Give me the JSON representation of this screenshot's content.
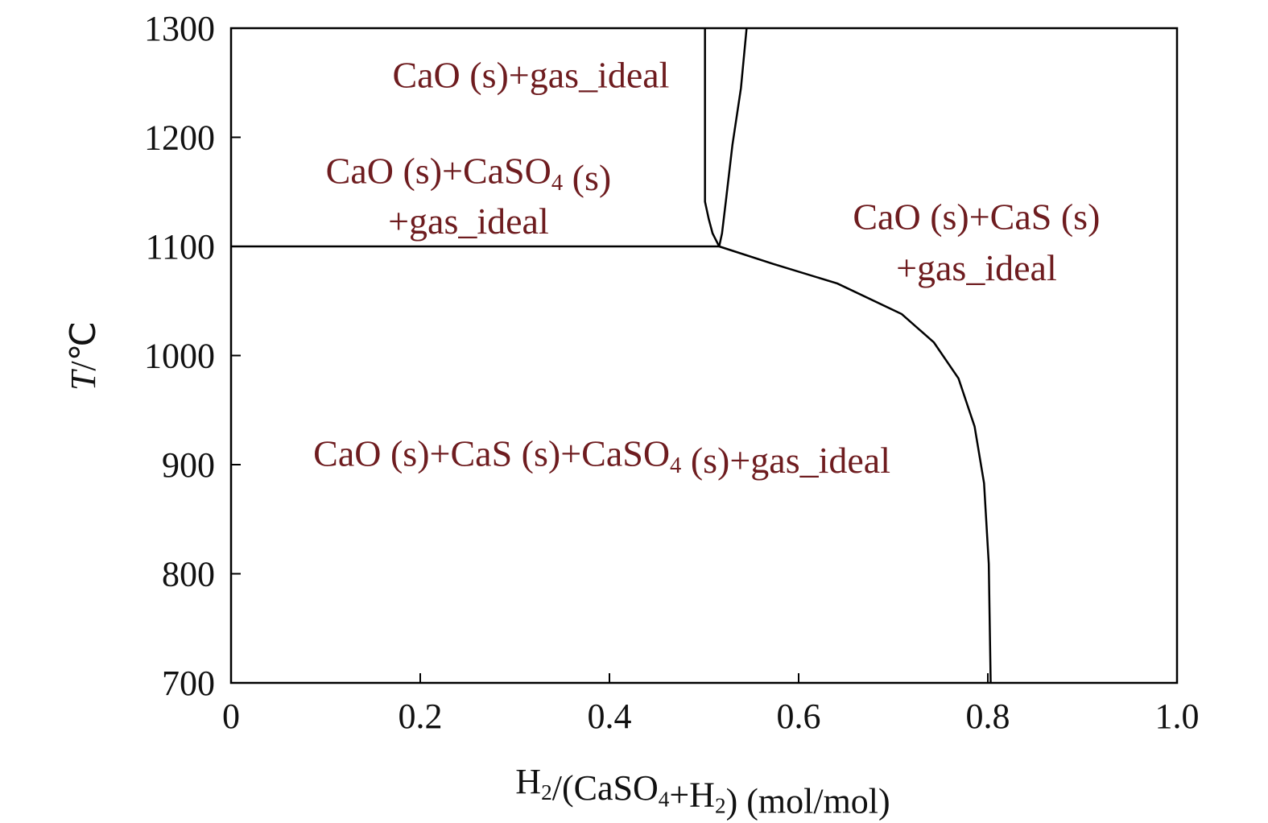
{
  "chart_data": {
    "type": "line",
    "title": "",
    "xlabel": [
      {
        "t": "H"
      },
      {
        "sub": "2"
      },
      {
        "t": "/(CaSO"
      },
      {
        "sub": "4"
      },
      {
        "t": "+H"
      },
      {
        "sub": "2"
      },
      {
        "t": ") (mol/mol)"
      }
    ],
    "ylabel": [
      {
        "i": "T"
      },
      {
        "t": "/℃"
      }
    ],
    "xlim": [
      0,
      1.0
    ],
    "ylim": [
      700,
      1300
    ],
    "xticks": [
      "0",
      "0.2",
      "0.4",
      "0.6",
      "0.8",
      "1.0"
    ],
    "xtick_values": [
      0,
      0.2,
      0.4,
      0.6,
      0.8,
      1.0
    ],
    "yticks": [
      "700",
      "800",
      "900",
      "1000",
      "1100",
      "1200",
      "1300"
    ],
    "ytick_values": [
      700,
      800,
      900,
      1000,
      1100,
      1200,
      1300
    ],
    "grid": false,
    "line_color": "#000000",
    "label_color": "#6e1c1f",
    "boundaries": [
      {
        "name": "horizontal-1100",
        "points": [
          [
            0,
            1100
          ],
          [
            0.516,
            1100
          ]
        ]
      },
      {
        "name": "left-narrow",
        "points": [
          [
            0.501,
            1300
          ],
          [
            0.501,
            1141
          ],
          [
            0.505,
            1125
          ],
          [
            0.509,
            1112
          ],
          [
            0.516,
            1100
          ]
        ]
      },
      {
        "name": "right-narrow",
        "points": [
          [
            0.545,
            1300
          ],
          [
            0.539,
            1245
          ],
          [
            0.53,
            1193
          ],
          [
            0.523,
            1141
          ],
          [
            0.519,
            1112
          ],
          [
            0.516,
            1100
          ]
        ]
      },
      {
        "name": "cas-boundary",
        "points": [
          [
            0.516,
            1100
          ],
          [
            0.573,
            1084
          ],
          [
            0.641,
            1066
          ],
          [
            0.709,
            1038
          ],
          [
            0.743,
            1012
          ],
          [
            0.769,
            979
          ],
          [
            0.786,
            935
          ],
          [
            0.796,
            883
          ],
          [
            0.801,
            809
          ],
          [
            0.803,
            700
          ]
        ]
      }
    ],
    "annotations": [
      {
        "x": 0.317,
        "y": 1257,
        "text": [
          {
            "t": "CaO (s)+gas_ideal"
          }
        ]
      },
      {
        "x": 0.251,
        "y": 1169,
        "text": [
          {
            "t": "CaO (s)+CaSO"
          },
          {
            "sub": "4"
          },
          {
            "t": " (s)"
          }
        ]
      },
      {
        "x": 0.251,
        "y": 1123,
        "text": [
          {
            "t": "+gas_ideal"
          }
        ]
      },
      {
        "x": 0.788,
        "y": 1127,
        "text": [
          {
            "t": "CaO (s)+CaS (s)"
          }
        ]
      },
      {
        "x": 0.788,
        "y": 1080,
        "text": [
          {
            "t": "+gas_ideal"
          }
        ]
      },
      {
        "x": 0.392,
        "y": 910,
        "text": [
          {
            "t": "CaO (s)+CaS (s)+CaSO"
          },
          {
            "sub": "4"
          },
          {
            "t": " (s)+gas_ideal"
          }
        ]
      }
    ]
  }
}
